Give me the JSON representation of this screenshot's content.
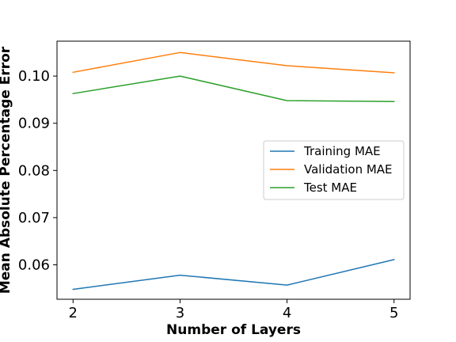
{
  "chart_data": {
    "type": "line",
    "xlabel": "Number of Layers",
    "ylabel": "Mean Absolute Percentage Error",
    "x": [
      2,
      3,
      4,
      5
    ],
    "xlim": [
      1.85,
      5.15
    ],
    "ylim": [
      0.0527,
      0.1074
    ],
    "x_ticks": [
      "2",
      "3",
      "4",
      "5"
    ],
    "y_ticks": [
      "0.06",
      "0.07",
      "0.08",
      "0.09",
      "0.10"
    ],
    "grid": false,
    "legend_position": "center-right",
    "series": [
      {
        "name": "Training MAE",
        "color": "#1f77b4",
        "values": [
          0.0548,
          0.0578,
          0.0557,
          0.0611
        ]
      },
      {
        "name": "Validation MAE",
        "color": "#ff7f0e",
        "values": [
          0.1008,
          0.105,
          0.1022,
          0.1007
        ]
      },
      {
        "name": "Test MAE",
        "color": "#2ca02c",
        "values": [
          0.0963,
          0.1,
          0.0948,
          0.0946
        ]
      }
    ]
  }
}
